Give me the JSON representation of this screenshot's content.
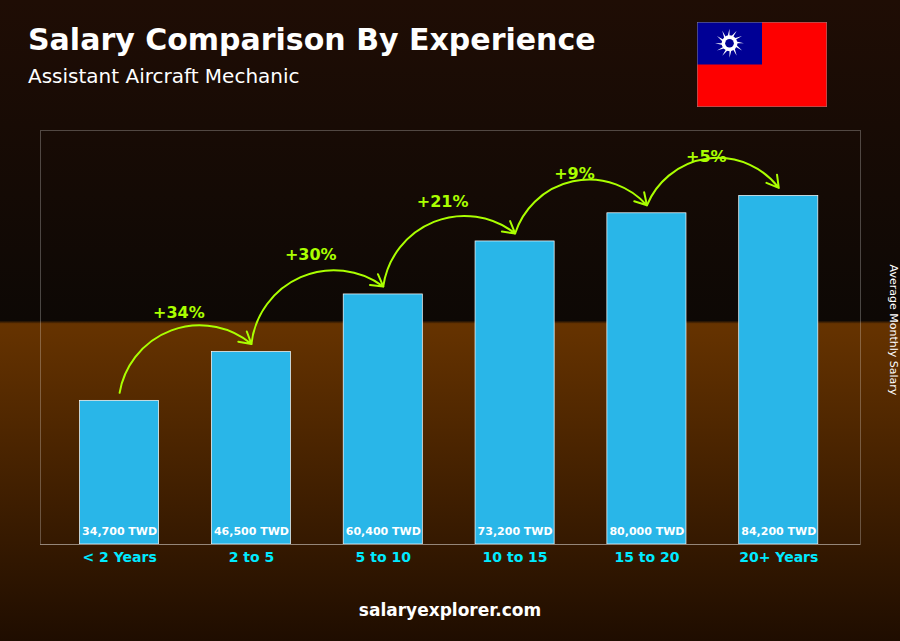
{
  "chart_data": {
    "type": "bar",
    "title": "Salary Comparison By Experience",
    "subtitle": "Assistant Aircraft Mechanic",
    "ylabel": "Average Monthly Salary",
    "categories": [
      "< 2 Years",
      "2 to 5",
      "5 to 10",
      "10 to 15",
      "15 to 20",
      "20+ Years"
    ],
    "values": [
      34700,
      46500,
      60400,
      73200,
      80000,
      84200
    ],
    "value_labels": [
      "34,700 TWD",
      "46,500 TWD",
      "60,400 TWD",
      "73,200 TWD",
      "80,000 TWD",
      "84,200 TWD"
    ],
    "data_labels": true,
    "annotations": [
      "+34%",
      "+30%",
      "+21%",
      "+9%",
      "+5%"
    ],
    "footer": "salaryexplorer.com",
    "color": "#29b6e8",
    "ylim": [
      0,
      100000
    ],
    "tick_labels": "x",
    "grid": false
  }
}
